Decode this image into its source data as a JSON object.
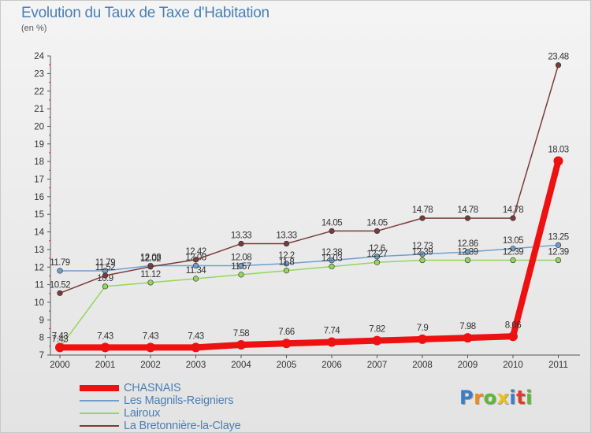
{
  "title": "Evolution du Taux de Taxe d'Habitation",
  "unit": "(en %)",
  "logo": {
    "letters": [
      "P",
      "r",
      "o",
      "x",
      "i",
      "t",
      "i"
    ],
    "colors": [
      "#3a7fc6",
      "#f28a1a",
      "#5db832",
      "#e8c21a",
      "#3a7fc6",
      "#e03a2c",
      "#5db832"
    ]
  },
  "chart_data": {
    "type": "line",
    "x": [
      "2000",
      "2001",
      "2002",
      "2003",
      "2004",
      "2005",
      "2006",
      "2007",
      "2008",
      "2009",
      "2010",
      "2011"
    ],
    "ylim": [
      7,
      24
    ],
    "yticks": [
      "7",
      "8",
      "9",
      "10",
      "11",
      "12",
      "13",
      "14",
      "15",
      "16",
      "17",
      "18",
      "19",
      "20",
      "21",
      "22",
      "23",
      "24"
    ],
    "grid": false,
    "legend_position": "bottom-left",
    "series": [
      {
        "name": "Les Magnils-Reigniers",
        "color": "#6f9fd0",
        "values": [
          11.79,
          11.79,
          12.08,
          12.08,
          12.08,
          12.2,
          12.38,
          12.6,
          12.73,
          12.86,
          13.05,
          13.25
        ],
        "labels": [
          "11.79",
          "11.79",
          "12.08",
          "12.08",
          "12.08",
          "12.2",
          "12.38",
          "12.6",
          "12.73",
          "12.86",
          "13.05",
          "13.25"
        ]
      },
      {
        "name": "Lairoux",
        "color": "#94d65c",
        "values": [
          7.43,
          10.9,
          11.12,
          11.34,
          11.57,
          11.8,
          12.03,
          12.27,
          12.39,
          12.39,
          12.39,
          12.39
        ],
        "labels": [
          "7.43",
          "10.9",
          "11.12",
          "11.34",
          "11.57",
          "11.8",
          "12.03",
          "12.27",
          "12.39",
          "12.39",
          "12.39",
          "12.39"
        ]
      },
      {
        "name": "La Bretonnière-la-Claye",
        "color": "#7a3b3b",
        "values": [
          10.52,
          11.52,
          12.02,
          12.42,
          13.33,
          13.33,
          14.05,
          14.05,
          14.78,
          14.78,
          14.78,
          23.48
        ],
        "labels": [
          "10.52",
          "11.52",
          "12.02",
          "12.42",
          "13.33",
          "13.33",
          "14.05",
          "14.05",
          "14.78",
          "14.78",
          "14.78",
          "23.48"
        ]
      },
      {
        "name": "CHASNAIS",
        "color": "#ee1111",
        "values": [
          7.43,
          7.43,
          7.43,
          7.43,
          7.58,
          7.66,
          7.74,
          7.82,
          7.9,
          7.98,
          8.06,
          18.03
        ],
        "labels": [
          "7.43",
          "7.43",
          "7.43",
          "7.43",
          "7.58",
          "7.66",
          "7.74",
          "7.82",
          "7.9",
          "7.98",
          "8.06",
          "18.03"
        ]
      }
    ]
  },
  "legend": [
    {
      "label": "CHASNAIS",
      "color": "#ee1111",
      "weight": "thick"
    },
    {
      "label": "Les Magnils-Reigniers",
      "color": "#6f9fd0",
      "weight": "thin"
    },
    {
      "label": "Lairoux",
      "color": "#94d65c",
      "weight": "thin"
    },
    {
      "label": "La Bretonnière-la-Claye",
      "color": "#7a3b3b",
      "weight": "thin"
    }
  ]
}
